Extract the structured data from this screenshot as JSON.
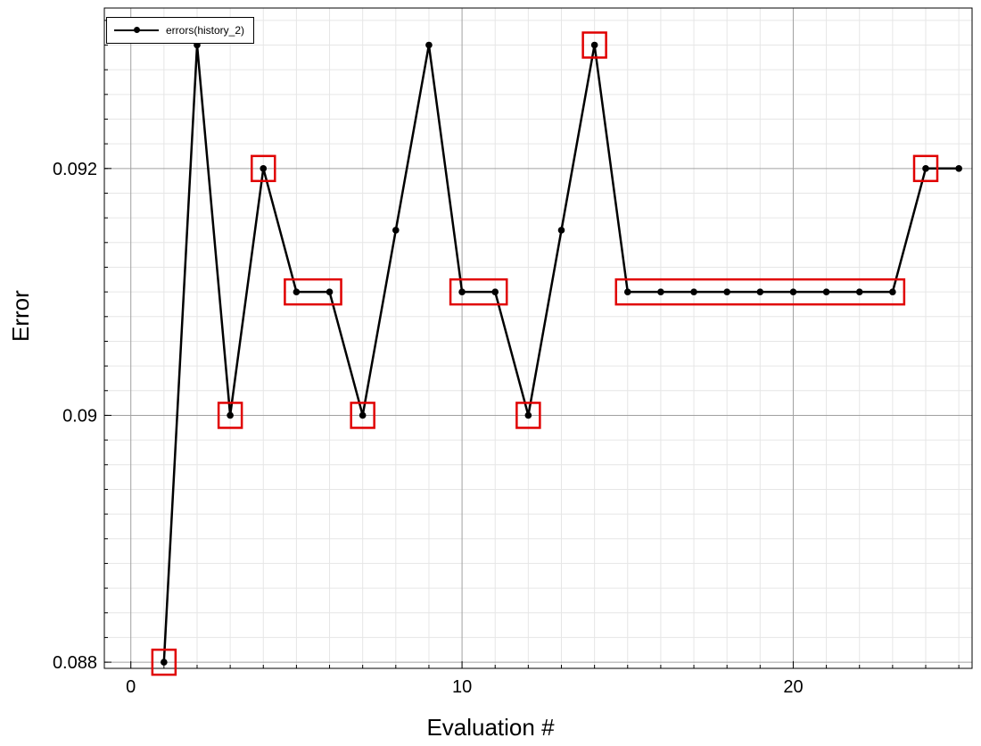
{
  "chart_data": {
    "type": "line",
    "xlabel": "Evaluation #",
    "ylabel": "Error",
    "xlim": [
      -0.8,
      25.4
    ],
    "ylim": [
      0.08795,
      0.0933
    ],
    "x_ticks": [
      0,
      10,
      20
    ],
    "y_ticks": [
      0.088,
      0.09,
      0.092
    ],
    "x_tick_labels": [
      "0",
      "10",
      "20"
    ],
    "y_tick_labels": [
      "0.088",
      "0.09",
      "0.092"
    ],
    "grid": true,
    "legend_position": "top-left",
    "series": [
      {
        "name": "errors(history_2)",
        "color": "#000000",
        "x": [
          1,
          2,
          3,
          4,
          5,
          6,
          7,
          8,
          9,
          10,
          11,
          12,
          13,
          14,
          15,
          16,
          17,
          18,
          19,
          20,
          21,
          22,
          23,
          24,
          25
        ],
        "y": [
          0.088,
          0.093,
          0.09,
          0.092,
          0.091,
          0.091,
          0.09,
          0.0915,
          0.093,
          0.091,
          0.091,
          0.09,
          0.0915,
          0.093,
          0.091,
          0.091,
          0.091,
          0.091,
          0.091,
          0.091,
          0.091,
          0.091,
          0.091,
          0.092,
          0.092
        ]
      }
    ],
    "highlight_color": "#e00000",
    "highlight_boxes": [
      {
        "x": [
          1,
          1
        ],
        "y": 0.088
      },
      {
        "x": [
          3,
          3
        ],
        "y": 0.09
      },
      {
        "x": [
          4,
          4
        ],
        "y": 0.092
      },
      {
        "x": [
          5,
          6
        ],
        "y": 0.091
      },
      {
        "x": [
          7,
          7
        ],
        "y": 0.09
      },
      {
        "x": [
          10,
          11
        ],
        "y": 0.091
      },
      {
        "x": [
          12,
          12
        ],
        "y": 0.09
      },
      {
        "x": [
          14,
          14
        ],
        "y": 0.093
      },
      {
        "x": [
          15,
          23
        ],
        "y": 0.091
      },
      {
        "x": [
          24,
          24
        ],
        "y": 0.092
      }
    ]
  }
}
